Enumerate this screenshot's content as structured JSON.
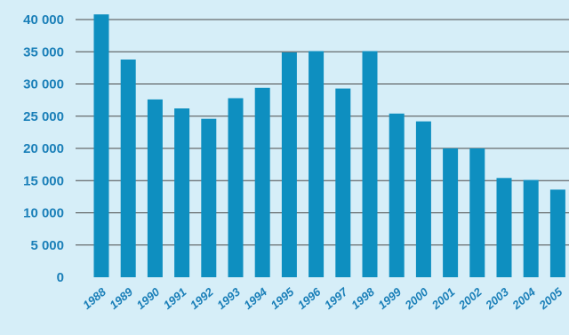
{
  "chart_data": {
    "type": "bar",
    "title": "",
    "xlabel": "",
    "ylabel": "",
    "categories": [
      "1988",
      "1989",
      "1990",
      "1991",
      "1992",
      "1993",
      "1994",
      "1995",
      "1996",
      "1997",
      "1998",
      "1999",
      "2000",
      "2001",
      "2002",
      "2003",
      "2004",
      "2005"
    ],
    "values": [
      40800,
      33800,
      27600,
      26200,
      24600,
      27800,
      29400,
      34900,
      35100,
      29300,
      35100,
      25400,
      24200,
      20000,
      20000,
      15400,
      15100,
      13600
    ],
    "ylim": [
      0,
      40000
    ],
    "yticks": [
      0,
      5000,
      10000,
      15000,
      20000,
      25000,
      30000,
      35000,
      40000
    ],
    "ytick_labels": [
      "0",
      "5 000",
      "10 000",
      "15 000",
      "20 000",
      "25 000",
      "30 000",
      "35 000",
      "40 000"
    ],
    "grid": true,
    "colors": {
      "background": "#d6eef8",
      "bar": "#0e8fc0",
      "tick_text": "#1a7fb8",
      "grid": "#4a4a4a"
    }
  }
}
